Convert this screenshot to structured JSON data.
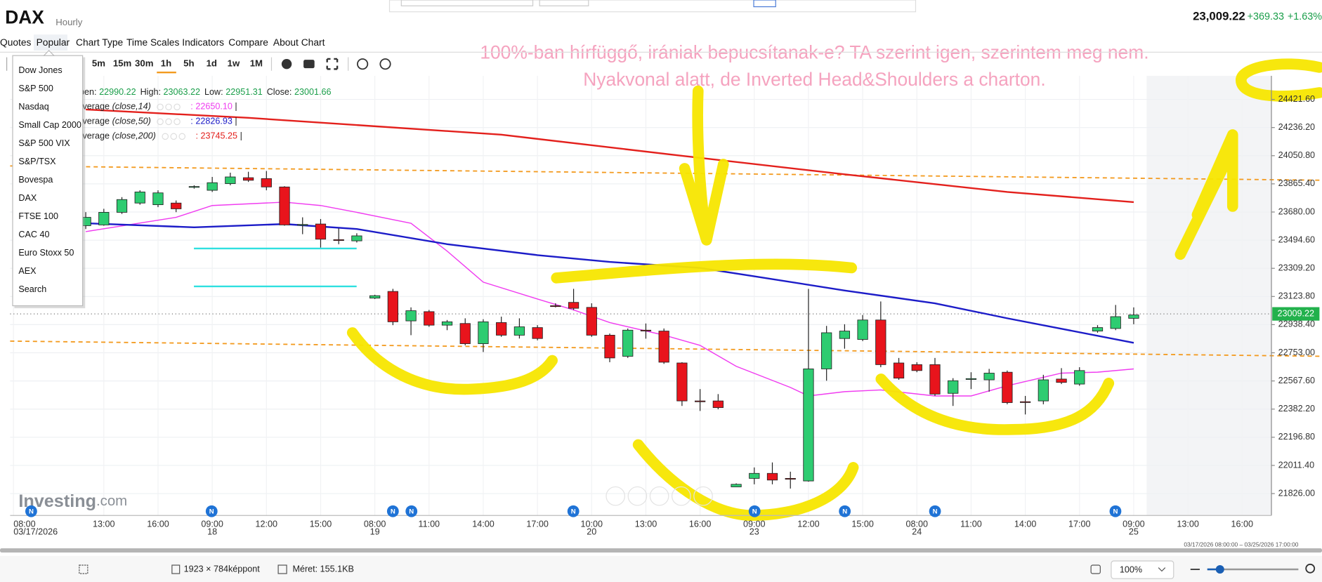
{
  "header": {
    "symbol": "DAX",
    "interval": "Hourly",
    "price": "23,009.22",
    "change": "+369.33",
    "change_pct": "+1.63%"
  },
  "menu": [
    "Quotes",
    "Popular",
    "Chart Type",
    "Time Scales",
    "Indicators",
    "Compare",
    "About Chart"
  ],
  "popular_menu": [
    "Dow Jones",
    "S&P 500",
    "Nasdaq",
    "Small Cap 2000",
    "S&P 500 VIX",
    "S&P/TSX",
    "Bovespa",
    "DAX",
    "FTSE 100",
    "CAC 40",
    "Euro Stoxx 50",
    "AEX",
    "Search"
  ],
  "timescales": [
    "5m",
    "15m",
    "30m",
    "1h",
    "5h",
    "1d",
    "1w",
    "1M"
  ],
  "annotations": [
    "100%-ban hírfüggő, irániak bepucsítanak-e? TA szerint igen, szerintem meg nem.",
    "Nyakvonal alatt, de Inverted Head&Shoulders a charton."
  ],
  "logo": {
    "main": "Investing",
    "suffix": ".com"
  },
  "news_marker": "N",
  "date_range": "03/17/2026 08:00:00 – 03/25/2026 17:00:00",
  "status_bar": {
    "dimensions": "1923 × 784képpont",
    "size": "Méret: 155.1KB",
    "zoom": "100%"
  },
  "chart_data": {
    "type": "candlestick",
    "ohlc_legend": [
      {
        "label": "Open:",
        "value": "22990.22"
      },
      {
        "label": "High:",
        "value": "23063.22"
      },
      {
        "label": "Low:",
        "value": "22951.31"
      },
      {
        "label": "Close:",
        "value": "23001.66"
      }
    ],
    "legend_separator": ":",
    "legend_end": "|",
    "categories": [
      "08:00",
      null,
      null,
      null,
      null,
      "13:00",
      null,
      null,
      "16:00",
      null,
      null,
      "09:00",
      null,
      null,
      "12:00",
      null,
      null,
      "15:00",
      null,
      null,
      "08:00",
      null,
      null,
      "11:00",
      null,
      null,
      "14:00",
      null,
      null,
      "17:00",
      null,
      null,
      "10:00",
      null,
      null,
      "13:00",
      null,
      null,
      "16:00",
      null,
      null,
      "09:00",
      null,
      null,
      "12:00",
      null,
      null,
      "15:00",
      null,
      null,
      "08:00",
      null,
      null,
      "11:00",
      null,
      null,
      "14:00",
      null,
      null,
      "17:00",
      null,
      null,
      "09:00",
      null,
      null,
      "13:00",
      null,
      null,
      "16:00"
    ],
    "category_dates": [
      "03/17/2026",
      null,
      null,
      null,
      null,
      null,
      null,
      null,
      null,
      null,
      null,
      "18",
      null,
      null,
      null,
      null,
      null,
      null,
      null,
      null,
      "19",
      null,
      null,
      null,
      null,
      null,
      null,
      null,
      null,
      null,
      null,
      null,
      "20",
      null,
      null,
      null,
      null,
      null,
      null,
      null,
      null,
      "23",
      null,
      null,
      null,
      null,
      null,
      null,
      null,
      null,
      "24",
      null,
      null,
      null,
      null,
      null,
      null,
      null,
      null,
      null,
      null,
      null,
      "25",
      null,
      null,
      null,
      null,
      null,
      null
    ],
    "open": [
      null,
      null,
      null,
      null,
      23590,
      23595,
      23678,
      23739,
      23728,
      23739,
      23845,
      23823,
      23867,
      23906,
      23900,
      23845,
      23595,
      23601,
      23498,
      23490,
      23113,
      23157,
      22963,
      23024,
      22935,
      22946,
      22813,
      22952,
      22869,
      22919,
      23063,
      23085,
      23052,
      22869,
      22730,
      22902,
      22896,
      22686,
      22436,
      22436,
      21870,
      21926,
      21959,
      21926,
      21909,
      22647,
      22847,
      22841,
      22969,
      22686,
      22675,
      22675,
      22486,
      22580,
      22575,
      22625,
      22431,
      22436,
      22580,
      22547,
      22896,
      22913,
      22980,
      null,
      null,
      null,
      null,
      null,
      null
    ],
    "high": [
      null,
      null,
      null,
      null,
      23679,
      23701,
      23778,
      23823,
      23823,
      23756,
      23856,
      23911,
      23939,
      23945,
      23950,
      23850,
      23645,
      23634,
      23573,
      23540,
      23135,
      23174,
      23052,
      23035,
      22969,
      22980,
      22974,
      22991,
      22980,
      22935,
      23079,
      23174,
      23079,
      22880,
      22913,
      22946,
      22913,
      22691,
      22514,
      22481,
      21893,
      21998,
      22031,
      21970,
      23174,
      22930,
      22941,
      23002,
      23091,
      22719,
      22691,
      22719,
      22586,
      22625,
      22647,
      22636,
      22469,
      22608,
      22652,
      22658,
      22935,
      23068,
      23052,
      null,
      null,
      null,
      null,
      null,
      null
    ],
    "low": [
      null,
      null,
      null,
      null,
      23568,
      23590,
      23667,
      23728,
      23712,
      23679,
      23834,
      23812,
      23856,
      23878,
      23823,
      23590,
      23534,
      23446,
      23468,
      23479,
      23107,
      22935,
      22869,
      22924,
      22902,
      22802,
      22758,
      22858,
      22847,
      22835,
      23052,
      23035,
      22858,
      22691,
      22719,
      22846,
      22680,
      22403,
      22370,
      22381,
      21870,
      21887,
      21887,
      21859,
      21904,
      22569,
      22780,
      22830,
      22658,
      22575,
      22625,
      22469,
      22403,
      22514,
      22497,
      22414,
      22347,
      22414,
      22547,
      22536,
      22885,
      22902,
      22941,
      null,
      null,
      null,
      null,
      null,
      null
    ],
    "close": [
      null,
      null,
      null,
      null,
      23645,
      23678,
      23762,
      23812,
      23806,
      23701,
      23848,
      23873,
      23911,
      23889,
      23845,
      23595,
      23598,
      23501,
      23495,
      23523,
      23129,
      22957,
      23030,
      22935,
      22957,
      22813,
      22957,
      22869,
      22924,
      22847,
      23060,
      23046,
      22869,
      22719,
      22902,
      22899,
      22691,
      22436,
      22433,
      22392,
      21887,
      21959,
      21915,
      21923,
      22647,
      22885,
      22896,
      22969,
      22675,
      22586,
      22636,
      22481,
      22569,
      22583,
      22619,
      22425,
      22428,
      22575,
      22558,
      22636,
      22919,
      22991,
      23002,
      null,
      null,
      null,
      null,
      null,
      null
    ],
    "up_color": "#2ecc71",
    "down_color": "#e8141c",
    "overlays": [
      {
        "name": "Moving Average",
        "params": "(close,14)",
        "color": "#f03cf0",
        "last_label": "22650.10",
        "x": [
          4,
          9,
          11,
          15,
          17,
          19,
          22,
          24,
          26,
          29,
          31,
          33,
          36,
          38,
          40,
          43,
          44,
          46,
          48,
          51,
          53,
          55,
          58,
          60,
          62
        ],
        "values": [
          23551,
          23645,
          23723,
          23745,
          23723,
          23678,
          23606,
          23423,
          23218,
          23107,
          23035,
          22952,
          22869,
          22802,
          22664,
          22525,
          22469,
          22497,
          22508,
          22469,
          22469,
          22536,
          22619,
          22625,
          22647
        ]
      },
      {
        "name": "Moving Average",
        "params": "(close,50)",
        "color": "#1c1cc8",
        "last_label": "22826.93",
        "x": [
          4,
          10,
          15,
          19,
          24,
          29,
          33,
          38,
          41,
          46,
          51,
          55,
          62
        ],
        "values": [
          23606,
          23579,
          23601,
          23568,
          23468,
          23396,
          23351,
          23312,
          23257,
          23163,
          23079,
          22980,
          22819
        ]
      },
      {
        "name": "Moving Average",
        "params": "(close,200)",
        "color": "#e3201c",
        "last_label": "23745.25",
        "x": [
          4,
          13,
          27,
          37,
          46,
          55,
          62
        ],
        "values": [
          24355,
          24300,
          24189,
          24050,
          23928,
          23812,
          23745
        ]
      }
    ],
    "current_price": 23009.22,
    "current_price_color": "#22b14c",
    "ylim": [
      21748.4,
      24576.9
    ],
    "yticks": [
      {
        "value": 24421.6,
        "label": "24421.60"
      },
      {
        "value": 24236.2,
        "label": "24236.20"
      },
      {
        "value": 24050.8,
        "label": "24050.80"
      },
      {
        "value": 23865.4,
        "label": "23865.40"
      },
      {
        "value": 23680,
        "label": "23680.00"
      },
      {
        "value": 23494.6,
        "label": "23494.60"
      },
      {
        "value": 23309.2,
        "label": "23309.20"
      },
      {
        "value": 23123.8,
        "label": "23123.80"
      },
      {
        "value": 22938.4,
        "label": "22938.40"
      },
      {
        "value": 22753,
        "label": "22753.00"
      },
      {
        "value": 22567.6,
        "label": "22567.60"
      },
      {
        "value": 22382.2,
        "label": "22382.20"
      },
      {
        "value": 22196.8,
        "label": "22196.80"
      },
      {
        "value": 22011.4,
        "label": "22011.40"
      },
      {
        "value": 21826,
        "label": "21826.00"
      }
    ],
    "grid": true
  }
}
